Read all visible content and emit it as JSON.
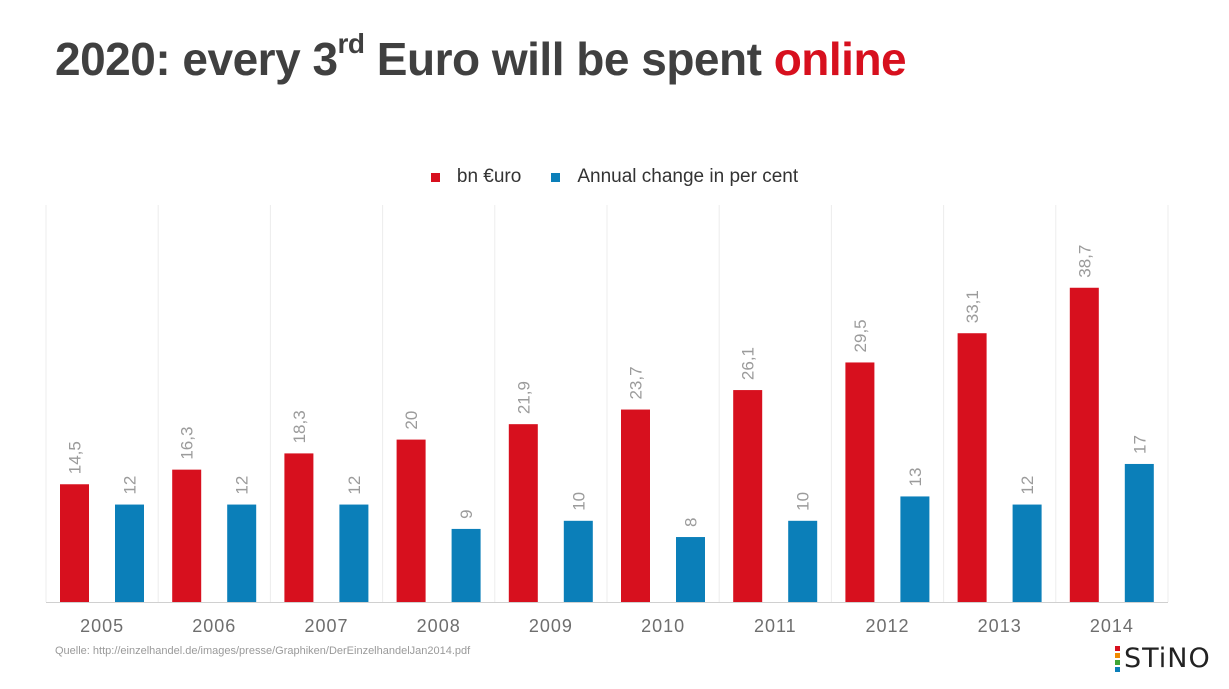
{
  "title": {
    "prefix": "2020: every 3",
    "superscript": "rd",
    "middle": " Euro will be spent ",
    "highlight": "online",
    "highlight_color": "#d7101e"
  },
  "chart_data": {
    "type": "bar",
    "categories": [
      "2005",
      "2006",
      "2007",
      "2008",
      "2009",
      "2010",
      "2011",
      "2012",
      "2013",
      "2014"
    ],
    "series": [
      {
        "name": "bn €uro",
        "color": "#d7101e",
        "values": [
          14.5,
          16.3,
          18.3,
          20,
          21.9,
          23.7,
          26.1,
          29.5,
          33.1,
          38.7
        ],
        "labels": [
          "14,5",
          "16,3",
          "18,3",
          "20",
          "21,9",
          "23,7",
          "26,1",
          "29,5",
          "33,1",
          "38,7"
        ]
      },
      {
        "name": "Annual change in per cent",
        "color": "#0b7fb9",
        "values": [
          12,
          12,
          12,
          9,
          10,
          8,
          10,
          13,
          12,
          17
        ],
        "labels": [
          "12",
          "12",
          "12",
          "9",
          "10",
          "8",
          "10",
          "13",
          "12",
          "17"
        ]
      }
    ],
    "legend_position": "top",
    "grid": "vertical category separators",
    "ylim": [
      0,
      50
    ]
  },
  "source": "Quelle: http://einzelhandel.de/images/presse/Graphiken/DerEinzelhandelJan2014.pdf",
  "logo": {
    "text": "STiNO",
    "bar_colors": [
      "#d7101e",
      "#f08a00",
      "#3fa535",
      "#0b7fb9"
    ]
  }
}
